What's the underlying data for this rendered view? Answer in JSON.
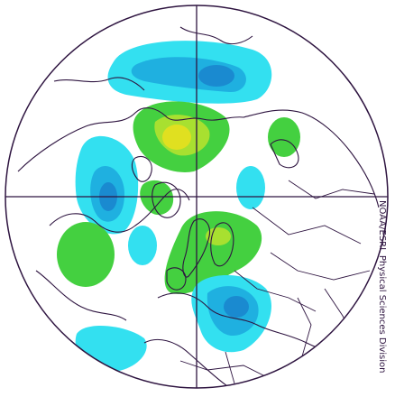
{
  "credit": "NOAA/ESRL Physical Sciences Division"
}
